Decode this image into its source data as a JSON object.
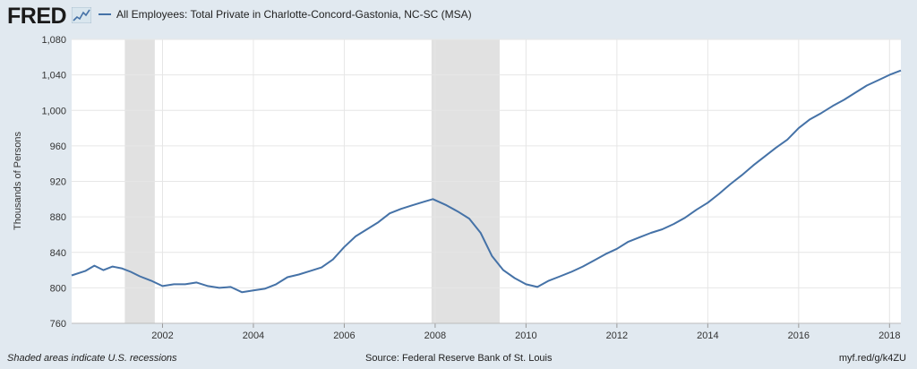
{
  "header": {
    "logo_text": "FRED",
    "legend_label": "All Employees: Total Private in Charlotte-Concord-Gastonia, NC-SC (MSA)"
  },
  "footer": {
    "left": "Shaded areas indicate U.S. recessions",
    "source": "Source: Federal Reserve Bank of St. Louis",
    "link": "myf.red/g/k4ZU"
  },
  "colors": {
    "series": "#4572a7",
    "recession": "#e1e1e1",
    "background": "#e1e9f0"
  },
  "chart_data": {
    "type": "line",
    "ylabel": "Thousands of Persons",
    "xlabel": "",
    "ylim": [
      760,
      1080
    ],
    "xlim": [
      2000.0,
      2018.25
    ],
    "y_ticks": [
      "760",
      "800",
      "840",
      "880",
      "920",
      "960",
      "1,000",
      "1,040",
      "1,080"
    ],
    "x_ticks": [
      "2002",
      "2004",
      "2006",
      "2008",
      "2010",
      "2012",
      "2014",
      "2016",
      "2018"
    ],
    "grid": true,
    "recessions": [
      [
        2001.17,
        2001.83
      ],
      [
        2007.92,
        2009.42
      ]
    ],
    "series": [
      {
        "name": "All Employees: Total Private in Charlotte-Concord-Gastonia, NC-SC (MSA)",
        "x": [
          2000.0,
          2000.3,
          2000.5,
          2000.7,
          2000.9,
          2001.1,
          2001.3,
          2001.5,
          2001.75,
          2002.0,
          2002.25,
          2002.5,
          2002.75,
          2003.0,
          2003.25,
          2003.5,
          2003.75,
          2004.0,
          2004.25,
          2004.5,
          2004.75,
          2005.0,
          2005.25,
          2005.5,
          2005.75,
          2006.0,
          2006.25,
          2006.5,
          2006.75,
          2007.0,
          2007.25,
          2007.5,
          2007.75,
          2007.95,
          2008.25,
          2008.5,
          2008.75,
          2009.0,
          2009.25,
          2009.5,
          2009.75,
          2010.0,
          2010.25,
          2010.5,
          2010.75,
          2011.0,
          2011.25,
          2011.5,
          2011.75,
          2012.0,
          2012.25,
          2012.5,
          2012.75,
          2013.0,
          2013.25,
          2013.5,
          2013.75,
          2014.0,
          2014.25,
          2014.5,
          2014.75,
          2015.0,
          2015.25,
          2015.5,
          2015.75,
          2016.0,
          2016.25,
          2016.5,
          2016.75,
          2017.0,
          2017.25,
          2017.5,
          2017.75,
          2018.0,
          2018.25
        ],
        "y": [
          814,
          819,
          825,
          820,
          824,
          822,
          818,
          813,
          808,
          802,
          804,
          804,
          806,
          802,
          800,
          801,
          795,
          797,
          799,
          804,
          812,
          815,
          819,
          823,
          832,
          846,
          858,
          866,
          874,
          884,
          889,
          893,
          897,
          900,
          893,
          886,
          878,
          862,
          836,
          820,
          811,
          804,
          801,
          808,
          813,
          818,
          824,
          831,
          838,
          844,
          852,
          857,
          862,
          866,
          872,
          879,
          888,
          896,
          906,
          917,
          927,
          938,
          948,
          958,
          967,
          980,
          990,
          997,
          1005,
          1012,
          1020,
          1028,
          1034,
          1040,
          1045
        ]
      }
    ]
  }
}
